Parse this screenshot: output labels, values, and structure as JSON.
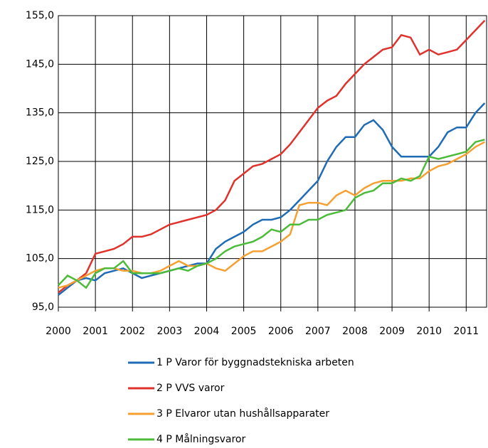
{
  "chart_data": {
    "type": "line",
    "x": [
      2000,
      2000.25,
      2000.5,
      2000.75,
      2001,
      2001.25,
      2001.5,
      2001.75,
      2002,
      2002.25,
      2002.5,
      2002.75,
      2003,
      2003.25,
      2003.5,
      2003.75,
      2004,
      2004.25,
      2004.5,
      2004.75,
      2005,
      2005.25,
      2005.5,
      2005.75,
      2006,
      2006.25,
      2006.5,
      2006.75,
      2007,
      2007.25,
      2007.5,
      2007.75,
      2008,
      2008.25,
      2008.5,
      2008.75,
      2009,
      2009.25,
      2009.5,
      2009.75,
      2010,
      2010.25,
      2010.5,
      2010.75,
      2011,
      2011.25,
      2011.5
    ],
    "series": [
      {
        "name": "1 P Varor för byggnadstekniska arbeten",
        "color": "#1f6bb5",
        "values": [
          97.5,
          99,
          100.5,
          101,
          100.5,
          102,
          102.5,
          103,
          102,
          101,
          101.5,
          102,
          102.5,
          103,
          103.5,
          104,
          104,
          107,
          108.5,
          109.5,
          110.5,
          112,
          113,
          113,
          113.5,
          115,
          117,
          119,
          121,
          125,
          128,
          130,
          130,
          132.5,
          133.5,
          131.5,
          128,
          126,
          126,
          126,
          126,
          128,
          131,
          132,
          132,
          135,
          137
        ]
      },
      {
        "name": "2 P VVS varor",
        "color": "#e0322d",
        "values": [
          98,
          99.5,
          100.5,
          102,
          106,
          106.5,
          107,
          108,
          109.5,
          109.5,
          110,
          111,
          112,
          112.5,
          113,
          113.5,
          114,
          115,
          117,
          121,
          122.5,
          124,
          124.5,
          125.5,
          126.5,
          128.5,
          131,
          133.5,
          136,
          137.5,
          138.5,
          141,
          143,
          145,
          146.5,
          148,
          148.5,
          151,
          150.5,
          147,
          148,
          147,
          147.5,
          148,
          150,
          152,
          154
        ]
      },
      {
        "name": "3 P Elvaror utan hushållsapparater",
        "color": "#f5a030",
        "values": [
          99,
          99.5,
          100.5,
          101.5,
          102.5,
          103,
          103,
          102.5,
          102.5,
          102,
          102,
          102.5,
          103.5,
          104.5,
          103.5,
          103.5,
          104,
          103,
          102.5,
          104,
          105.5,
          106.5,
          106.5,
          107.5,
          108.5,
          110,
          116,
          116.5,
          116.5,
          116,
          118,
          119,
          118,
          119.5,
          120.5,
          121,
          121,
          121,
          121.5,
          121.5,
          123,
          124,
          124.5,
          125.5,
          126.5,
          128,
          129
        ]
      },
      {
        "name": "4 P Målningsvaror",
        "color": "#4cbb3a",
        "values": [
          99.5,
          101.5,
          100.5,
          99,
          102,
          103,
          103,
          104.5,
          102,
          102,
          102,
          102,
          102.5,
          103,
          102.5,
          103.5,
          104,
          105,
          106.5,
          107.5,
          108,
          108.5,
          109.5,
          111,
          110.5,
          112,
          112,
          113,
          113,
          114,
          114.5,
          115,
          117.5,
          118.5,
          119,
          120.5,
          120.5,
          121.5,
          121,
          122,
          126,
          125.5,
          126,
          126.5,
          127,
          129,
          129.5
        ]
      }
    ],
    "xlim": [
      2000,
      2011.55
    ],
    "xticks": [
      2000,
      2001,
      2002,
      2003,
      2004,
      2005,
      2006,
      2007,
      2008,
      2009,
      2010,
      2011
    ],
    "ylim": [
      95,
      155
    ],
    "yticks": [
      {
        "value": 95,
        "label": "95,0"
      },
      {
        "value": 105,
        "label": "105,0"
      },
      {
        "value": 115,
        "label": "115,0"
      },
      {
        "value": 125,
        "label": "125,0"
      },
      {
        "value": 135,
        "label": "135,0"
      },
      {
        "value": 145,
        "label": "145,0"
      },
      {
        "value": 155,
        "label": "155,0"
      }
    ],
    "grid": true
  }
}
